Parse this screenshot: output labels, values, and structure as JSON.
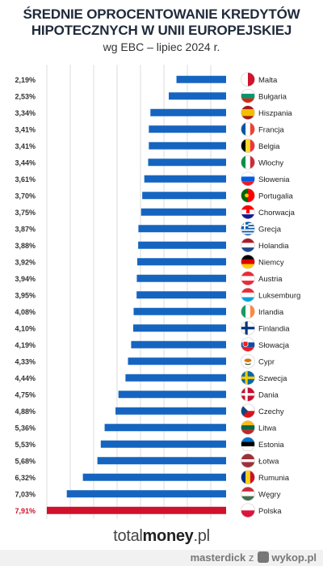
{
  "header": {
    "title_line1": "ŚREDNIE OPROCENTOWANIE KREDYTÓW",
    "title_line2": "HIPOTECZNYCH W UNII EUROPEJSKIEJ",
    "subtitle": "wg EBC – lipiec 2024 r."
  },
  "footer": {
    "brand_light": "total",
    "brand_bold": "money",
    "brand_suffix": ".pl"
  },
  "watermark": {
    "user": "masterdick",
    "z": "z",
    "site": "wykop.pl"
  },
  "colors": {
    "bar": "#1565c0",
    "highlight": "#d0112b",
    "grid": "#dcdcdc"
  },
  "chart_data": {
    "type": "bar",
    "orientation": "horizontal",
    "title": "ŚREDNIE OPROCENTOWANIE KREDYTÓW HIPOTECZNYCH W UNII EUROPEJSKIEJ",
    "subtitle": "wg EBC – lipiec 2024 r.",
    "categories": [
      "Malta",
      "Bułgaria",
      "Hiszpania",
      "Francja",
      "Belgia",
      "Włochy",
      "Słowenia",
      "Portugalia",
      "Chorwacja",
      "Grecja",
      "Holandia",
      "Niemcy",
      "Austria",
      "Luksemburg",
      "Irlandia",
      "Finlandia",
      "Słowacja",
      "Cypr",
      "Szwecja",
      "Dania",
      "Czechy",
      "Litwa",
      "Estonia",
      "Łotwa",
      "Rumunia",
      "Węgry",
      "Polska"
    ],
    "values": [
      2.19,
      2.53,
      3.34,
      3.41,
      3.41,
      3.44,
      3.61,
      3.7,
      3.75,
      3.87,
      3.88,
      3.92,
      3.94,
      3.95,
      4.08,
      4.1,
      4.19,
      4.33,
      4.44,
      4.75,
      4.88,
      5.36,
      5.53,
      5.68,
      6.32,
      7.03,
      7.91
    ],
    "value_labels": [
      "2,19%",
      "2,53%",
      "3,34%",
      "3,41%",
      "3,41%",
      "3,44%",
      "3,61%",
      "3,70%",
      "3,75%",
      "3,87%",
      "3,88%",
      "3,92%",
      "3,94%",
      "3,95%",
      "4,08%",
      "4,10%",
      "4,19%",
      "4,33%",
      "4,44%",
      "4,75%",
      "4,88%",
      "5,36%",
      "5,53%",
      "5,68%",
      "6,32%",
      "7,03%",
      "7,91%"
    ],
    "highlight": "Polska",
    "flags": [
      "malta",
      "bulgaria",
      "spain",
      "france",
      "belgium",
      "italy",
      "slovenia",
      "portugal",
      "croatia",
      "greece",
      "netherlands",
      "germany",
      "austria",
      "luxembourg",
      "ireland",
      "finland",
      "slovakia",
      "cyprus",
      "sweden",
      "denmark",
      "czechia",
      "lithuania",
      "estonia",
      "latvia",
      "romania",
      "hungary",
      "poland"
    ],
    "xlim": [
      0,
      8
    ],
    "grid": true
  }
}
